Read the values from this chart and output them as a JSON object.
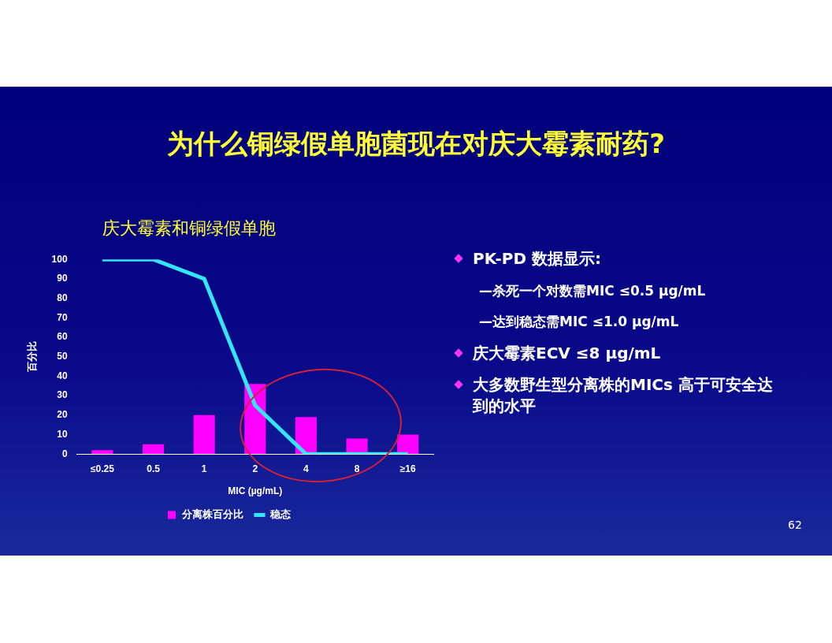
{
  "chart_data": {
    "type": "bar",
    "title": "为什么铜绿假单胞菌现在对庆大霉素耐药?",
    "subtitle": "庆大霉素和铜绿假单胞",
    "xlabel": "MIC (µg/mL)",
    "ylabel": "百分比",
    "categories": [
      "≤0.25",
      "0.5",
      "1",
      "2",
      "4",
      "8",
      "≥16"
    ],
    "series": [
      {
        "name": "分离株百分比",
        "color": "#ff00ff",
        "values": [
          2,
          5,
          20,
          36,
          19,
          8,
          10
        ]
      },
      {
        "name": "稳态",
        "type": "line",
        "color": "#33e6ff",
        "values": [
          100,
          100,
          90,
          25,
          0,
          0,
          0
        ]
      }
    ],
    "ylim": [
      0,
      100
    ],
    "yticks": [
      0,
      10,
      20,
      30,
      40,
      50,
      60,
      70,
      80,
      90,
      100
    ],
    "grid": false,
    "legend": "bottom",
    "marker": "none",
    "annotations": [
      "PK-PD 数据显示:",
      "—杀死一个对数需MIC ≤0.5 µg/mL",
      "—达到稳态需MIC ≤1.0 µg/mL",
      "庆大霉素ECV ≤8 µg/mL",
      "大多数野生型分离株的MICs 高于可安全达到的水平",
      "62"
    ]
  }
}
